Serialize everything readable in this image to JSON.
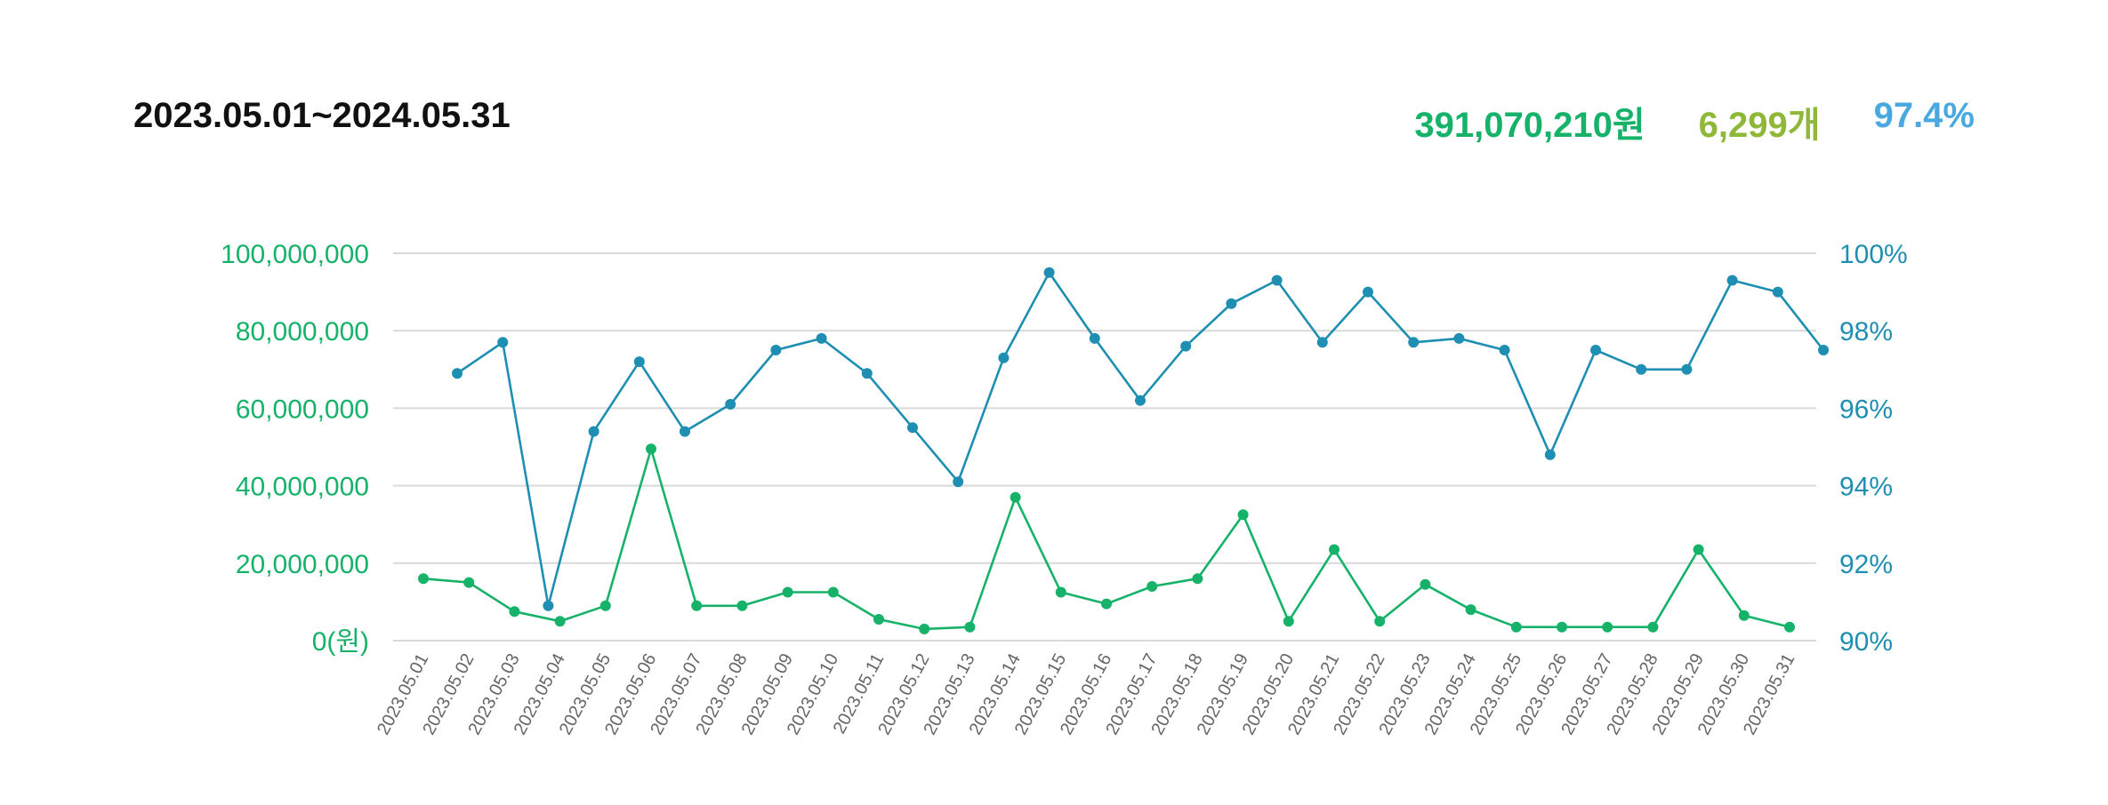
{
  "header": {
    "date_range": "2023.05.01~2024.05.31",
    "total_amount": "391,070,210원",
    "total_count": "6,299개",
    "total_rate": "97.4%"
  },
  "colors": {
    "amount": "#17b26a",
    "count": "#8fb83a",
    "rate_summary": "#4aa8e0",
    "rate_line": "#1e8fb2",
    "grid": "#d9d9d9"
  },
  "chart_data": {
    "type": "line",
    "categories": [
      "2023.05.01",
      "2023.05.02",
      "2023.05.03",
      "2023.05.04",
      "2023.05.05",
      "2023.05.06",
      "2023.05.07",
      "2023.05.08",
      "2023.05.09",
      "2023.05.10",
      "2023.05.11",
      "2023.05.12",
      "2023.05.13",
      "2023.05.14",
      "2023.05.15",
      "2023.05.16",
      "2023.05.17",
      "2023.05.18",
      "2023.05.19",
      "2023.05.20",
      "2023.05.21",
      "2023.05.22",
      "2023.05.23",
      "2023.05.24",
      "2023.05.25",
      "2023.05.26",
      "2023.05.27",
      "2023.05.28",
      "2023.05.29",
      "2023.05.30",
      "2023.05.31"
    ],
    "series": [
      {
        "axis": "left",
        "values": [
          16000000,
          15000000,
          7500000,
          5000000,
          9000000,
          49500000,
          9000000,
          9000000,
          12500000,
          12500000,
          5500000,
          3000000,
          3500000,
          37000000,
          12500000,
          9500000,
          14000000,
          16000000,
          32500000,
          5000000,
          23500000,
          5000000,
          14500000,
          8000000,
          3500000,
          3500000,
          3500000,
          3500000,
          23500000,
          6500000,
          3500000
        ]
      },
      {
        "axis": "right",
        "values": [
          96.9,
          97.7,
          90.9,
          95.4,
          97.2,
          95.4,
          96.1,
          97.5,
          97.8,
          96.9,
          95.5,
          94.1,
          97.3,
          99.5,
          97.8,
          96.2,
          97.6,
          98.7,
          99.3,
          97.7,
          99.0,
          97.7,
          97.8,
          97.5,
          94.8,
          97.5,
          97.0,
          97.0,
          99.3,
          99.0,
          97.5
        ]
      }
    ],
    "y_left": {
      "ylim": [
        0,
        100000000
      ],
      "ticks": [
        0,
        20000000,
        40000000,
        60000000,
        80000000,
        100000000
      ],
      "tick_labels": [
        "0(원)",
        "20,000,000",
        "40,000,000",
        "60,000,000",
        "80,000,000",
        "100,000,000"
      ]
    },
    "y_right": {
      "ylim": [
        90,
        100
      ],
      "ticks": [
        90,
        92,
        94,
        96,
        98,
        100
      ],
      "tick_labels": [
        "90%",
        "92%",
        "94%",
        "96%",
        "98%",
        "100%"
      ]
    },
    "grid": true,
    "legend": "none"
  }
}
